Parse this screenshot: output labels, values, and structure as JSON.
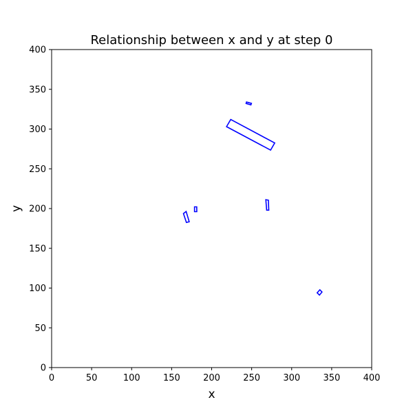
{
  "chart_data": {
    "type": "scatter",
    "title": "Relationship between x and y at step 0",
    "xlabel": "x",
    "ylabel": "y",
    "xlim": [
      0,
      400
    ],
    "ylim": [
      0,
      400
    ],
    "xticks": [
      0,
      50,
      100,
      150,
      200,
      250,
      300,
      350,
      400
    ],
    "yticks": [
      0,
      50,
      100,
      150,
      200,
      250,
      300,
      350,
      400
    ],
    "grid": false,
    "color": "#0000ff",
    "shapes": [
      {
        "name": "rect-large",
        "corners": [
          [
            218.6,
            303.0
          ],
          [
            273.6,
            273.5
          ],
          [
            278.8,
            282.5
          ],
          [
            223.8,
            312.0
          ]
        ]
      },
      {
        "name": "rect-top-small",
        "corners": [
          [
            243.5,
            334.0
          ],
          [
            249.7,
            332.3
          ],
          [
            249.0,
            330.4
          ],
          [
            243.0,
            332.2
          ]
        ]
      },
      {
        "name": "rect-mid-right",
        "corners": [
          [
            267.7,
            211.2
          ],
          [
            270.9,
            210.6
          ],
          [
            271.4,
            198.0
          ],
          [
            268.7,
            198.0
          ]
        ]
      },
      {
        "name": "rect-left-tilted",
        "corners": [
          [
            164.7,
            193.8
          ],
          [
            168.1,
            196.4
          ],
          [
            172.0,
            183.4
          ],
          [
            168.4,
            182.5
          ]
        ]
      },
      {
        "name": "rect-left-small",
        "corners": [
          [
            178.6,
            202.2
          ],
          [
            181.3,
            202.2
          ],
          [
            181.4,
            196.1
          ],
          [
            178.6,
            196.1
          ]
        ]
      },
      {
        "name": "rect-bottom-right",
        "corners": [
          [
            331.9,
            94.0
          ],
          [
            334.7,
            91.2
          ],
          [
            337.9,
            95.1
          ],
          [
            335.2,
            97.8
          ]
        ]
      }
    ]
  }
}
